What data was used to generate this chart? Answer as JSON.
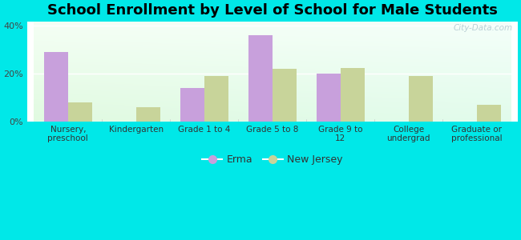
{
  "title": "School Enrollment by Level of School for Male Students",
  "categories": [
    "Nursery,\npreschool",
    "Kindergarten",
    "Grade 1 to 4",
    "Grade 5 to 8",
    "Grade 9 to\n12",
    "College\nundergrad",
    "Graduate or\nprofessional"
  ],
  "erma_values": [
    29.0,
    0.0,
    14.0,
    36.0,
    20.0,
    0.0,
    0.0
  ],
  "nj_values": [
    8.0,
    6.0,
    19.0,
    22.0,
    22.5,
    19.0,
    7.0
  ],
  "erma_color": "#c8a0dc",
  "nj_color": "#c8d49a",
  "background_color": "#00e8e8",
  "ylim": [
    0,
    42
  ],
  "yticks": [
    0,
    20,
    40
  ],
  "ytick_labels": [
    "0%",
    "20%",
    "40%"
  ],
  "legend_erma": "Erma",
  "legend_nj": "New Jersey",
  "title_fontsize": 13,
  "bar_width": 0.35,
  "watermark": "City-Data.com"
}
